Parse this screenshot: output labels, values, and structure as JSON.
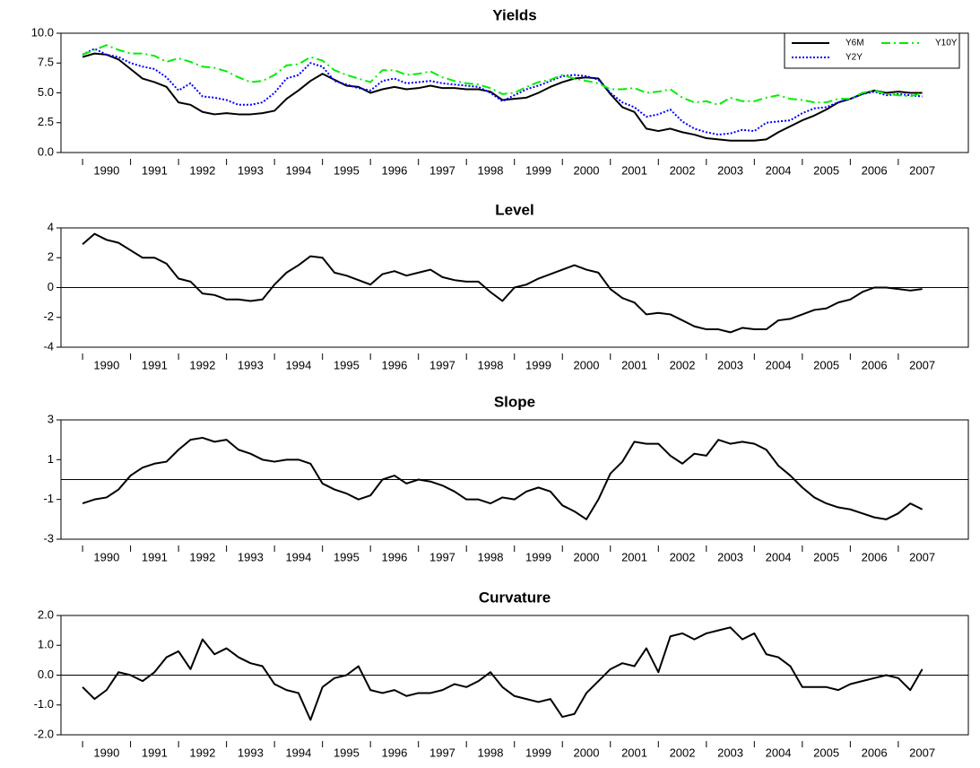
{
  "chart_data": [
    {
      "type": "line",
      "title": "Yields",
      "x": [
        1990,
        1990.25,
        1990.5,
        1990.75,
        1991,
        1991.25,
        1991.5,
        1991.75,
        1992,
        1992.25,
        1992.5,
        1992.75,
        1993,
        1993.25,
        1993.5,
        1993.75,
        1994,
        1994.25,
        1994.5,
        1994.75,
        1995,
        1995.25,
        1995.5,
        1995.75,
        1996,
        1996.25,
        1996.5,
        1996.75,
        1997,
        1997.25,
        1997.5,
        1997.75,
        1998,
        1998.25,
        1998.5,
        1998.75,
        1999,
        1999.25,
        1999.5,
        1999.75,
        2000,
        2000.25,
        2000.5,
        2000.75,
        2001,
        2001.25,
        2001.5,
        2001.75,
        2002,
        2002.25,
        2002.5,
        2002.75,
        2003,
        2003.25,
        2003.5,
        2003.75,
        2004,
        2004.25,
        2004.5,
        2004.75,
        2005,
        2005.25,
        2005.5,
        2005.75,
        2006,
        2006.25,
        2006.5,
        2006.75,
        2007,
        2007.25,
        2007.5
      ],
      "series": [
        {
          "name": "Y6M",
          "color": "#000000",
          "dash": "solid",
          "values": [
            8.0,
            8.3,
            8.2,
            7.8,
            7.0,
            6.2,
            5.9,
            5.5,
            4.2,
            4.0,
            3.4,
            3.2,
            3.3,
            3.2,
            3.2,
            3.3,
            3.5,
            4.5,
            5.2,
            6.0,
            6.6,
            6.1,
            5.6,
            5.5,
            5.0,
            5.3,
            5.5,
            5.3,
            5.4,
            5.6,
            5.4,
            5.4,
            5.3,
            5.3,
            5.1,
            4.4,
            4.5,
            4.6,
            5.0,
            5.5,
            5.9,
            6.2,
            6.3,
            6.2,
            4.9,
            3.8,
            3.4,
            2.0,
            1.8,
            2.0,
            1.7,
            1.5,
            1.2,
            1.1,
            1.0,
            1.0,
            1.0,
            1.1,
            1.7,
            2.2,
            2.7,
            3.1,
            3.6,
            4.2,
            4.5,
            4.9,
            5.2,
            5.0,
            5.1,
            5.0,
            5.0
          ]
        },
        {
          "name": "Y2Y",
          "color": "#0000ff",
          "dash": "dotted",
          "values": [
            8.2,
            8.7,
            8.2,
            8.0,
            7.5,
            7.2,
            7.0,
            6.3,
            5.2,
            5.8,
            4.7,
            4.6,
            4.4,
            4.0,
            4.0,
            4.2,
            5.0,
            6.2,
            6.5,
            7.5,
            7.2,
            6.0,
            5.7,
            5.4,
            5.2,
            6.0,
            6.2,
            5.8,
            5.9,
            6.0,
            5.8,
            5.7,
            5.6,
            5.5,
            5.0,
            4.3,
            4.8,
            5.3,
            5.6,
            6.0,
            6.4,
            6.5,
            6.4,
            6.1,
            5.0,
            4.2,
            3.8,
            3.0,
            3.2,
            3.6,
            2.6,
            2.0,
            1.7,
            1.5,
            1.6,
            1.9,
            1.8,
            2.5,
            2.6,
            2.7,
            3.3,
            3.7,
            3.8,
            4.2,
            4.5,
            4.9,
            5.1,
            4.8,
            4.9,
            4.8,
            4.7
          ]
        },
        {
          "name": "Y10Y",
          "color": "#00ee00",
          "dash": "dashdot",
          "values": [
            8.2,
            8.6,
            9.0,
            8.6,
            8.3,
            8.3,
            8.1,
            7.6,
            7.9,
            7.6,
            7.2,
            7.1,
            6.8,
            6.3,
            5.9,
            6.0,
            6.5,
            7.3,
            7.4,
            8.0,
            7.7,
            6.9,
            6.5,
            6.2,
            5.9,
            6.9,
            6.9,
            6.5,
            6.6,
            6.8,
            6.3,
            6.0,
            5.8,
            5.7,
            5.4,
            4.9,
            5.0,
            5.5,
            5.9,
            6.1,
            6.5,
            6.2,
            6.0,
            5.8,
            5.3,
            5.3,
            5.4,
            5.0,
            5.1,
            5.3,
            4.6,
            4.2,
            4.3,
            4.0,
            4.6,
            4.3,
            4.3,
            4.6,
            4.8,
            4.5,
            4.4,
            4.2,
            4.2,
            4.5,
            4.5,
            5.0,
            5.2,
            4.9,
            4.8,
            4.7,
            5.0
          ]
        }
      ],
      "xlim": [
        1989.55,
        2008.46
      ],
      "xticks": [
        1990,
        1991,
        1992,
        1993,
        1994,
        1995,
        1996,
        1997,
        1998,
        1999,
        2000,
        2001,
        2002,
        2003,
        2004,
        2005,
        2006,
        2007
      ],
      "ylim": [
        0,
        10
      ],
      "yticks": [
        {
          "value": 0,
          "label": "0.0"
        },
        2.5,
        {
          "value": 5,
          "label": "5.0"
        },
        7.5,
        {
          "value": 10,
          "label": "10.0"
        }
      ],
      "legend": "upper right",
      "zero_line": false
    },
    {
      "type": "line",
      "title": "Level",
      "x": [
        1990,
        1990.25,
        1990.5,
        1990.75,
        1991,
        1991.25,
        1991.5,
        1991.75,
        1992,
        1992.25,
        1992.5,
        1992.75,
        1993,
        1993.25,
        1993.5,
        1993.75,
        1994,
        1994.25,
        1994.5,
        1994.75,
        1995,
        1995.25,
        1995.5,
        1995.75,
        1996,
        1996.25,
        1996.5,
        1996.75,
        1997,
        1997.25,
        1997.5,
        1997.75,
        1998,
        1998.25,
        1998.5,
        1998.75,
        1999,
        1999.25,
        1999.5,
        1999.75,
        2000,
        2000.25,
        2000.5,
        2000.75,
        2001,
        2001.25,
        2001.5,
        2001.75,
        2002,
        2002.25,
        2002.5,
        2002.75,
        2003,
        2003.25,
        2003.5,
        2003.75,
        2004,
        2004.25,
        2004.5,
        2004.75,
        2005,
        2005.25,
        2005.5,
        2005.75,
        2006,
        2006.25,
        2006.5,
        2006.75,
        2007,
        2007.25,
        2007.5
      ],
      "values": [
        2.9,
        3.6,
        3.2,
        3.0,
        2.5,
        2.0,
        2.0,
        1.6,
        0.6,
        0.4,
        -0.4,
        -0.5,
        -0.8,
        -0.8,
        -0.9,
        -0.8,
        0.2,
        1.0,
        1.5,
        2.1,
        2.0,
        1.0,
        0.8,
        0.5,
        0.2,
        0.9,
        1.1,
        0.8,
        1.0,
        1.2,
        0.7,
        0.5,
        0.4,
        0.4,
        -0.3,
        -0.9,
        0.0,
        0.2,
        0.6,
        0.9,
        1.2,
        1.5,
        1.2,
        1.0,
        -0.1,
        -0.7,
        -1.0,
        -1.8,
        -1.7,
        -1.8,
        -2.2,
        -2.6,
        -2.8,
        -2.8,
        -3.0,
        -2.7,
        -2.8,
        -2.8,
        -2.2,
        -2.1,
        -1.8,
        -1.5,
        -1.4,
        -1.0,
        -0.8,
        -0.3,
        0.0,
        0.0,
        -0.1,
        -0.2,
        -0.1
      ],
      "color": "#000000",
      "xlim": [
        1989.55,
        2008.46
      ],
      "xticks": [
        1990,
        1991,
        1992,
        1993,
        1994,
        1995,
        1996,
        1997,
        1998,
        1999,
        2000,
        2001,
        2002,
        2003,
        2004,
        2005,
        2006,
        2007
      ],
      "ylim": [
        -4,
        4
      ],
      "yticks": [
        -4,
        -2,
        0,
        2,
        4
      ],
      "zero_line": true
    },
    {
      "type": "line",
      "title": "Slope",
      "x": [
        1990,
        1990.25,
        1990.5,
        1990.75,
        1991,
        1991.25,
        1991.5,
        1991.75,
        1992,
        1992.25,
        1992.5,
        1992.75,
        1993,
        1993.25,
        1993.5,
        1993.75,
        1994,
        1994.25,
        1994.5,
        1994.75,
        1995,
        1995.25,
        1995.5,
        1995.75,
        1996,
        1996.25,
        1996.5,
        1996.75,
        1997,
        1997.25,
        1997.5,
        1997.75,
        1998,
        1998.25,
        1998.5,
        1998.75,
        1999,
        1999.25,
        1999.5,
        1999.75,
        2000,
        2000.25,
        2000.5,
        2000.75,
        2001,
        2001.25,
        2001.5,
        2001.75,
        2002,
        2002.25,
        2002.5,
        2002.75,
        2003,
        2003.25,
        2003.5,
        2003.75,
        2004,
        2004.25,
        2004.5,
        2004.75,
        2005,
        2005.25,
        2005.5,
        2005.75,
        2006,
        2006.25,
        2006.5,
        2006.75,
        2007,
        2007.25,
        2007.5
      ],
      "values": [
        -1.2,
        -1.0,
        -0.9,
        -0.5,
        0.2,
        0.6,
        0.8,
        0.9,
        1.5,
        2.0,
        2.1,
        1.9,
        2.0,
        1.5,
        1.3,
        1.0,
        0.9,
        1.0,
        1.0,
        0.8,
        -0.2,
        -0.5,
        -0.7,
        -1.0,
        -0.8,
        0.0,
        0.2,
        -0.2,
        0.0,
        -0.1,
        -0.3,
        -0.6,
        -1.0,
        -1.0,
        -1.2,
        -0.9,
        -1.0,
        -0.6,
        -0.4,
        -0.6,
        -1.3,
        -1.6,
        -2.0,
        -1.0,
        0.3,
        0.9,
        1.9,
        1.8,
        1.8,
        1.2,
        0.8,
        1.3,
        1.2,
        2.0,
        1.8,
        1.9,
        1.8,
        1.5,
        0.7,
        0.2,
        -0.4,
        -0.9,
        -1.2,
        -1.4,
        -1.5,
        -1.7,
        -1.9,
        -2.0,
        -1.7,
        -1.2,
        -1.5
      ],
      "color": "#000000",
      "xlim": [
        1989.55,
        2008.46
      ],
      "xticks": [
        1990,
        1991,
        1992,
        1993,
        1994,
        1995,
        1996,
        1997,
        1998,
        1999,
        2000,
        2001,
        2002,
        2003,
        2004,
        2005,
        2006,
        2007
      ],
      "ylim": [
        -3,
        3
      ],
      "yticks": [
        -3,
        -1,
        1,
        3
      ],
      "zero_line": true
    },
    {
      "type": "line",
      "title": "Curvature",
      "x": [
        1990,
        1990.25,
        1990.5,
        1990.75,
        1991,
        1991.25,
        1991.5,
        1991.75,
        1992,
        1992.25,
        1992.5,
        1992.75,
        1993,
        1993.25,
        1993.5,
        1993.75,
        1994,
        1994.25,
        1994.5,
        1994.75,
        1995,
        1995.25,
        1995.5,
        1995.75,
        1996,
        1996.25,
        1996.5,
        1996.75,
        1997,
        1997.25,
        1997.5,
        1997.75,
        1998,
        1998.25,
        1998.5,
        1998.75,
        1999,
        1999.25,
        1999.5,
        1999.75,
        2000,
        2000.25,
        2000.5,
        2000.75,
        2001,
        2001.25,
        2001.5,
        2001.75,
        2002,
        2002.25,
        2002.5,
        2002.75,
        2003,
        2003.25,
        2003.5,
        2003.75,
        2004,
        2004.25,
        2004.5,
        2004.75,
        2005,
        2005.25,
        2005.5,
        2005.75,
        2006,
        2006.25,
        2006.5,
        2006.75,
        2007,
        2007.25,
        2007.5
      ],
      "values": [
        -0.4,
        -0.8,
        -0.5,
        0.1,
        0.0,
        -0.2,
        0.1,
        0.6,
        0.8,
        0.2,
        1.2,
        0.7,
        0.9,
        0.6,
        0.4,
        0.3,
        -0.3,
        -0.5,
        -0.6,
        -1.5,
        -0.4,
        -0.1,
        0.0,
        0.3,
        -0.5,
        -0.6,
        -0.5,
        -0.7,
        -0.6,
        -0.6,
        -0.5,
        -0.3,
        -0.4,
        -0.2,
        0.1,
        -0.4,
        -0.7,
        -0.8,
        -0.9,
        -0.8,
        -1.4,
        -1.3,
        -0.6,
        -0.2,
        0.2,
        0.4,
        0.3,
        0.9,
        0.1,
        1.3,
        1.4,
        1.2,
        1.4,
        1.5,
        1.6,
        1.2,
        1.4,
        0.7,
        0.6,
        0.3,
        -0.4,
        -0.4,
        -0.4,
        -0.5,
        -0.3,
        -0.2,
        -0.1,
        0.0,
        -0.1,
        -0.5,
        0.2
      ],
      "color": "#000000",
      "xlim": [
        1989.55,
        2008.46
      ],
      "xticks": [
        1990,
        1991,
        1992,
        1993,
        1994,
        1995,
        1996,
        1997,
        1998,
        1999,
        2000,
        2001,
        2002,
        2003,
        2004,
        2005,
        2006,
        2007
      ],
      "ylim": [
        -2,
        2
      ],
      "yticks": [
        {
          "value": -2,
          "label": "-2.0"
        },
        {
          "value": -1,
          "label": "-1.0"
        },
        {
          "value": 0,
          "label": "0.0"
        },
        {
          "value": 1,
          "label": "1.0"
        },
        {
          "value": 2,
          "label": "2.0"
        }
      ],
      "zero_line": true
    }
  ]
}
